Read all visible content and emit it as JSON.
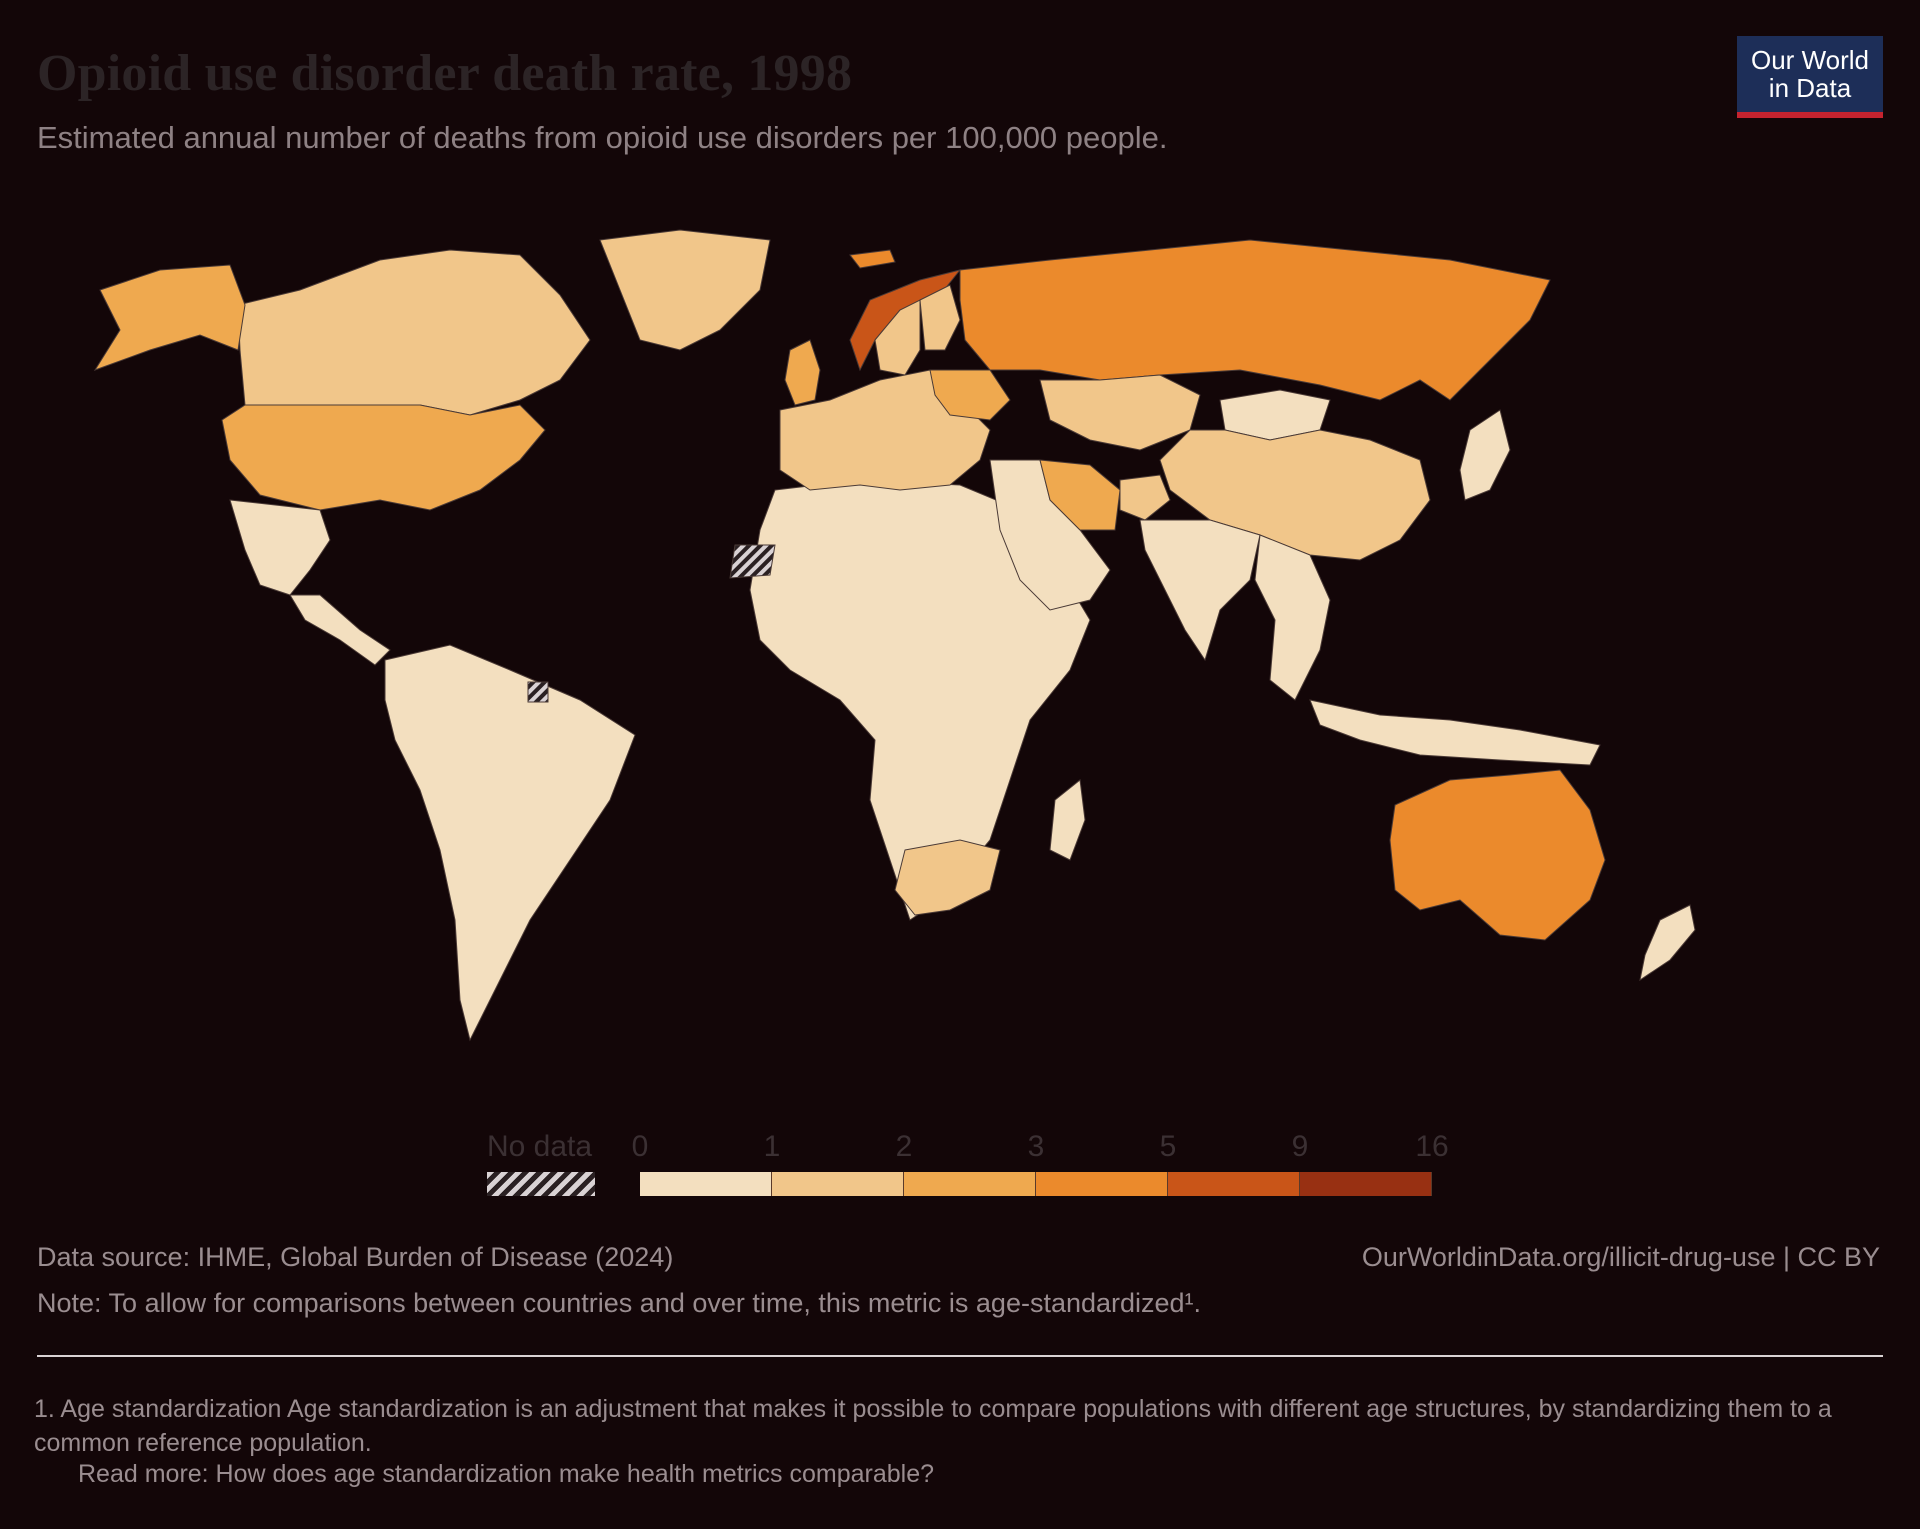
{
  "header": {
    "title": "Opioid use disorder death rate, 1998",
    "subtitle": "Estimated annual number of deaths from opioid use disorders per 100,000 people."
  },
  "logo": {
    "line1": "Our World",
    "line2": "in Data"
  },
  "legend": {
    "no_data_label": "No data",
    "ticks": [
      "0",
      "1",
      "2",
      "3",
      "5",
      "9",
      "16"
    ],
    "colors": [
      "#f3dfbf",
      "#f1c68a",
      "#efa94f",
      "#eb8a2c",
      "#c95518",
      "#983012"
    ]
  },
  "map_data": {
    "type": "choropleth",
    "year": "1998",
    "regions": [
      {
        "name": "United States",
        "bin": 2
      },
      {
        "name": "Canada",
        "bin": 1
      },
      {
        "name": "Alaska",
        "bin": 2
      },
      {
        "name": "Greenland",
        "bin": 1
      },
      {
        "name": "Mexico",
        "bin": 0
      },
      {
        "name": "Central America",
        "bin": 0
      },
      {
        "name": "South America",
        "bin": 0
      },
      {
        "name": "Africa",
        "bin": 0
      },
      {
        "name": "South Africa",
        "bin": 1
      },
      {
        "name": "Madagascar",
        "bin": 0
      },
      {
        "name": "Western Sahara",
        "bin": -1
      },
      {
        "name": "French Guiana",
        "bin": -1
      },
      {
        "name": "Europe",
        "bin": 1
      },
      {
        "name": "Norway",
        "bin": 4
      },
      {
        "name": "Sweden",
        "bin": 1
      },
      {
        "name": "Finland",
        "bin": 1
      },
      {
        "name": "United Kingdom",
        "bin": 2
      },
      {
        "name": "Ukraine",
        "bin": 2
      },
      {
        "name": "Russia",
        "bin": 3
      },
      {
        "name": "Kazakhstan",
        "bin": 1
      },
      {
        "name": "Iran",
        "bin": 2
      },
      {
        "name": "Middle East",
        "bin": 0
      },
      {
        "name": "Afghanistan",
        "bin": 1
      },
      {
        "name": "India",
        "bin": 0
      },
      {
        "name": "China",
        "bin": 1
      },
      {
        "name": "Mongolia",
        "bin": 0
      },
      {
        "name": "Southeast Asia",
        "bin": 0
      },
      {
        "name": "Indonesia",
        "bin": 0
      },
      {
        "name": "Japan",
        "bin": 0
      },
      {
        "name": "Australia",
        "bin": 3
      },
      {
        "name": "New Zealand",
        "bin": 0
      },
      {
        "name": "Iceland",
        "bin": 3
      }
    ]
  },
  "footer": {
    "source": "Data source: IHME, Global Burden of Disease (2024)",
    "link": "OurWorldinData.org/illicit-drug-use | CC BY",
    "note": "Note: To allow for comparisons between countries and over time, this metric is age-standardized¹.",
    "footnote": "1. Age standardization Age standardization is an adjustment that makes it possible to compare populations with different age structures, by standardizing them to a common reference population.",
    "read_more": "Read more: How does age standardization make health metrics comparable?"
  }
}
